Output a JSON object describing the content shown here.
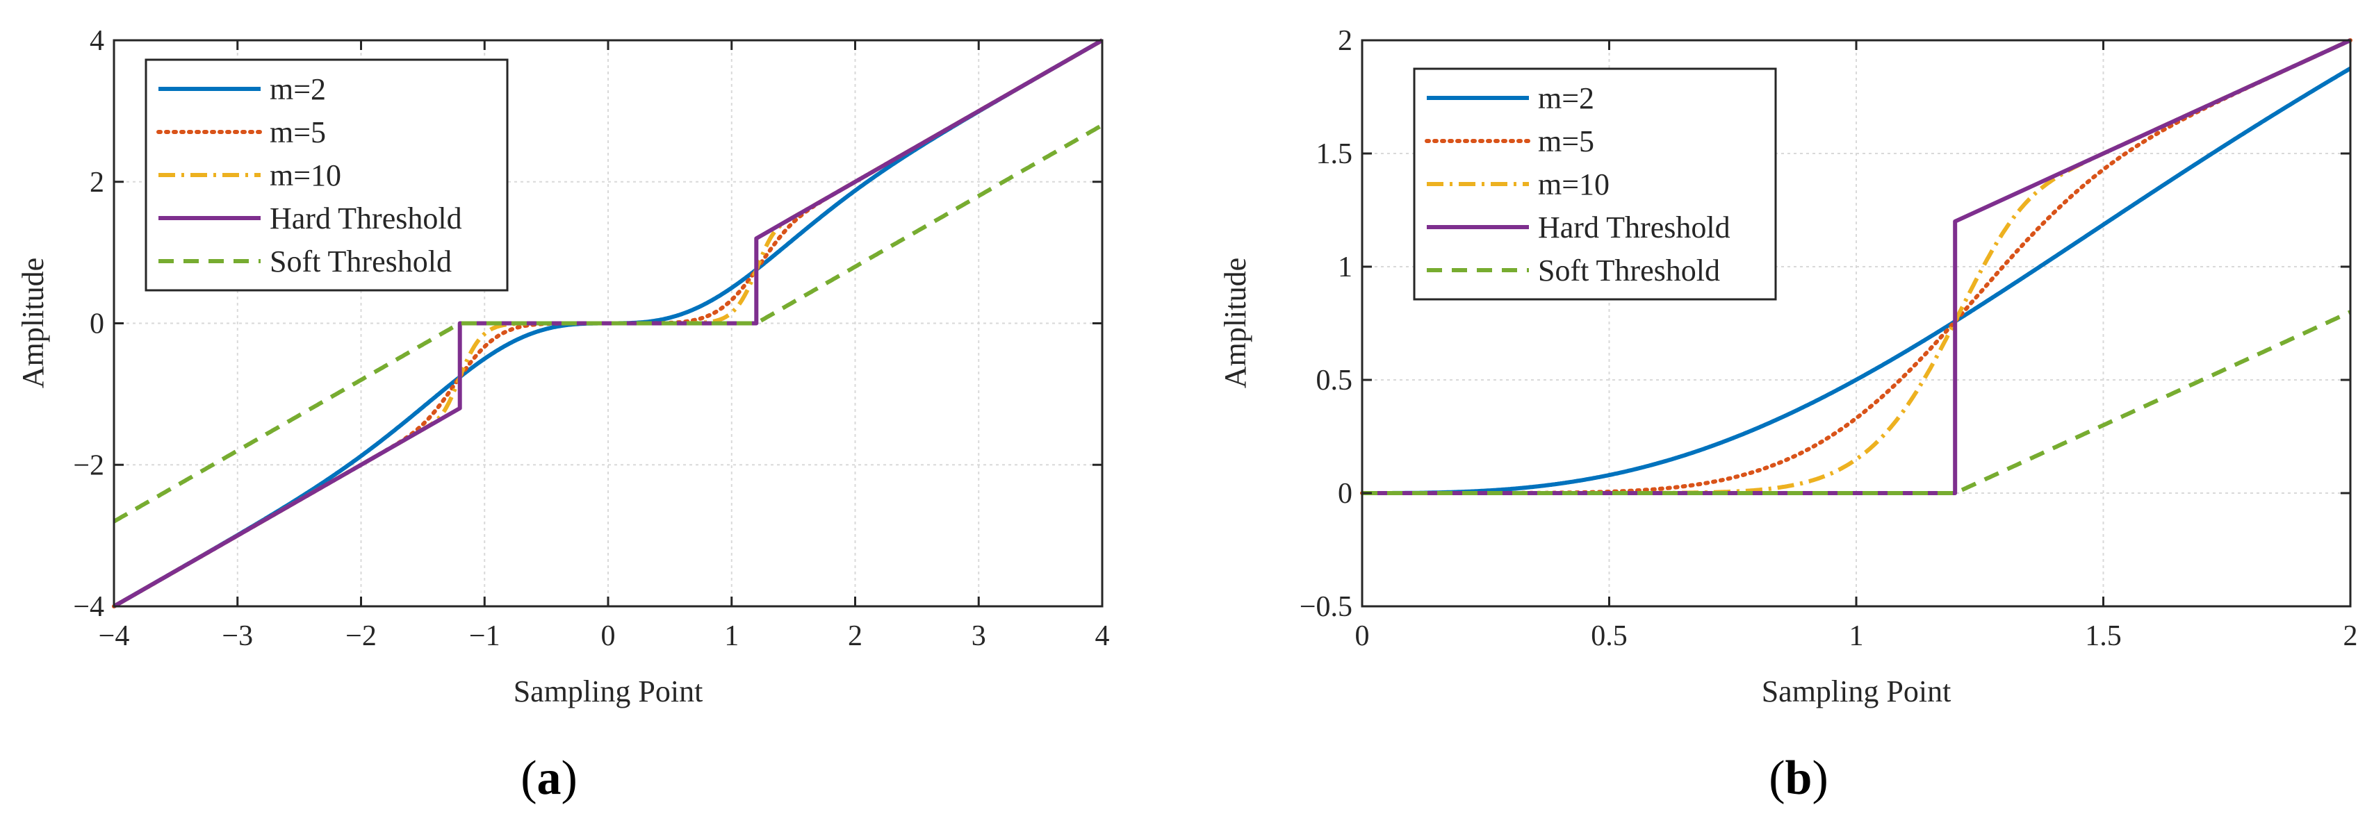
{
  "chart_data": [
    {
      "type": "line",
      "panel_label": "a",
      "xlabel": "Sampling Point",
      "ylabel": "Amplitude",
      "xlim": [
        -4,
        4
      ],
      "ylim": [
        -4,
        4
      ],
      "xticks": [
        -4,
        -3,
        -2,
        -1,
        0,
        1,
        2,
        3,
        4
      ],
      "yticks": [
        -4,
        -2,
        0,
        2,
        4
      ],
      "xtick_labels": [
        "−4",
        "−3",
        "−2",
        "−1",
        "0",
        "1",
        "2",
        "3",
        "4"
      ],
      "ytick_labels": [
        "−4",
        "−2",
        "0",
        "2",
        "4"
      ],
      "grid": true,
      "legend_position": "top-left",
      "threshold": 1.2,
      "series": [
        {
          "name": "m=2",
          "color": "#0072BD",
          "style": "solid",
          "function": "improved",
          "m": 2
        },
        {
          "name": "m=5",
          "color": "#D95319",
          "style": "dotted",
          "function": "improved",
          "m": 5
        },
        {
          "name": "m=10",
          "color": "#EDB120",
          "style": "dashdot",
          "function": "improved",
          "m": 10
        },
        {
          "name": "Hard Threshold",
          "color": "#7E2F8E",
          "style": "solid",
          "function": "hard"
        },
        {
          "name": "Soft Threshold",
          "color": "#77AC30",
          "style": "dashed",
          "function": "soft"
        }
      ]
    },
    {
      "type": "line",
      "panel_label": "b",
      "xlabel": "Sampling Point",
      "ylabel": "Amplitude",
      "xlim": [
        0,
        2
      ],
      "ylim": [
        -0.5,
        2
      ],
      "xticks": [
        0,
        0.5,
        1,
        1.5,
        2
      ],
      "yticks": [
        -0.5,
        0,
        0.5,
        1,
        1.5,
        2
      ],
      "xtick_labels": [
        "0",
        "0.5",
        "1",
        "1.5",
        "2"
      ],
      "ytick_labels": [
        "−0.5",
        "0",
        "0.5",
        "1",
        "1.5",
        "2"
      ],
      "grid": true,
      "legend_position": "top-left",
      "threshold": 1.2,
      "series": [
        {
          "name": "m=2",
          "color": "#0072BD",
          "style": "solid",
          "function": "improved",
          "m": 2
        },
        {
          "name": "m=5",
          "color": "#D95319",
          "style": "dotted",
          "function": "improved",
          "m": 5
        },
        {
          "name": "m=10",
          "color": "#EDB120",
          "style": "dashdot",
          "function": "improved",
          "m": 10
        },
        {
          "name": "Hard Threshold",
          "color": "#7E2F8E",
          "style": "solid",
          "function": "hard"
        },
        {
          "name": "Soft Threshold",
          "color": "#77AC30",
          "style": "dashed",
          "function": "soft"
        }
      ]
    }
  ]
}
